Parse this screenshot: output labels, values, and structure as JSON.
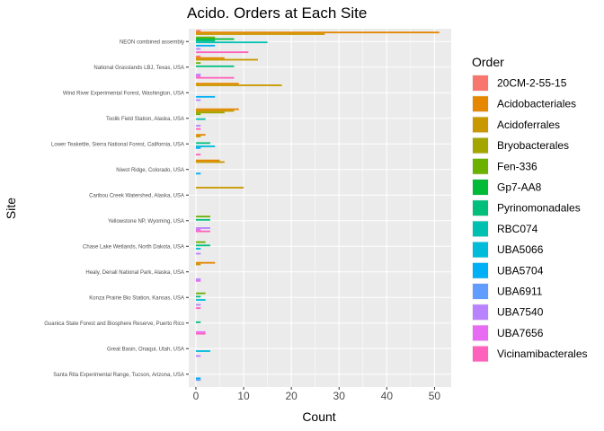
{
  "chart_data": {
    "type": "bar",
    "orientation": "horizontal",
    "title": "Acido. Orders at Each Site",
    "xlabel": "Count",
    "ylabel": "Site",
    "xlim": [
      -1.5,
      53.5
    ],
    "xticks": [
      0,
      10,
      20,
      30,
      40,
      50
    ],
    "grid": true,
    "legend": {
      "title": "Order",
      "placement": "right"
    },
    "categories": [
      "NEON combined assembly",
      "National Grasslands LBJ, Texas, USA",
      "Wind River Experimental Forest, Washington, USA",
      "Toolik Field Station, Alaska, USA",
      "Lower Teakettle, Sierra National Forest, California, USA",
      "Niwot Ridge, Colorado, USA",
      "Caribou Creek Watershed, Alaska, USA",
      "Yellowstone NP, Wyoming, USA",
      "Chase Lake Wetlands, North Dakota, USA",
      "Healy, Denali National Park, Alaska, USA",
      "Konza Prairie Bio Station, Kansas, USA",
      "Guanica State Forest and Biosphere Reserve, Puerto Rico",
      "Great Basin, Onaqui, Utah, USA",
      "Santa Rita Experimental Range, Tucson, Arizona, USA"
    ],
    "series": [
      {
        "name": "20CM-2-55-15",
        "color": "#F8766D",
        "values": [
          1,
          1,
          0,
          0,
          0,
          0,
          0,
          0,
          0,
          0,
          0,
          0,
          0,
          0
        ]
      },
      {
        "name": "Acidobacteriales",
        "color": "#E58700",
        "values": [
          51,
          6,
          9,
          9,
          2,
          5,
          0,
          0,
          0,
          4,
          0,
          0,
          0,
          0
        ]
      },
      {
        "name": "Acidoferrales",
        "color": "#C99800",
        "values": [
          27,
          13,
          18,
          8,
          1,
          6,
          10,
          0,
          0,
          1,
          0,
          0,
          0,
          0
        ]
      },
      {
        "name": "Bryobacterales",
        "color": "#A3A500",
        "values": [
          0,
          0,
          0,
          6,
          0,
          0,
          0,
          0,
          0,
          0,
          0,
          0,
          0,
          0
        ]
      },
      {
        "name": "Fen-336",
        "color": "#6BB100",
        "values": [
          4,
          1,
          0,
          1,
          0,
          0,
          0,
          3,
          2,
          0,
          2,
          0,
          0,
          0
        ]
      },
      {
        "name": "Gp7-AA8",
        "color": "#00BA38",
        "values": [
          8,
          0,
          0,
          0,
          0,
          0,
          0,
          0,
          0,
          0,
          0,
          0,
          0,
          0
        ]
      },
      {
        "name": "Pyrinomonadales",
        "color": "#00BF7D",
        "values": [
          4,
          8,
          0,
          0,
          3,
          0,
          0,
          3,
          3,
          0,
          1,
          1,
          0,
          0
        ]
      },
      {
        "name": "RBC074",
        "color": "#00C0AF",
        "values": [
          15,
          0,
          0,
          2,
          0,
          0,
          0,
          0,
          0,
          0,
          0,
          0,
          0,
          0
        ]
      },
      {
        "name": "UBA5066",
        "color": "#00BCD8",
        "values": [
          0,
          0,
          0,
          0,
          4,
          0,
          0,
          0,
          1,
          0,
          2,
          0,
          3,
          0
        ]
      },
      {
        "name": "UBA5704",
        "color": "#00B0F6",
        "values": [
          4,
          0,
          4,
          0,
          1,
          1,
          0,
          0,
          0,
          0,
          0,
          0,
          0,
          1
        ]
      },
      {
        "name": "UBA6911",
        "color": "#619CFF",
        "values": [
          0,
          0,
          0,
          0,
          0,
          0,
          0,
          0,
          0,
          0,
          0,
          0,
          0,
          1
        ]
      },
      {
        "name": "UBA7540",
        "color": "#B983FF",
        "values": [
          1,
          1,
          1,
          1,
          0,
          0,
          0,
          3,
          1,
          1,
          1,
          0,
          1,
          0
        ]
      },
      {
        "name": "UBA7656",
        "color": "#E76BF3",
        "values": [
          0,
          1,
          0,
          0,
          0,
          0,
          0,
          1,
          0,
          1,
          0,
          2,
          0,
          0
        ]
      },
      {
        "name": "Vicinamibacterales",
        "color": "#FF62BC",
        "values": [
          11,
          8,
          0,
          1,
          1,
          0,
          0,
          3,
          0,
          0,
          1,
          2,
          0,
          0
        ]
      }
    ]
  }
}
